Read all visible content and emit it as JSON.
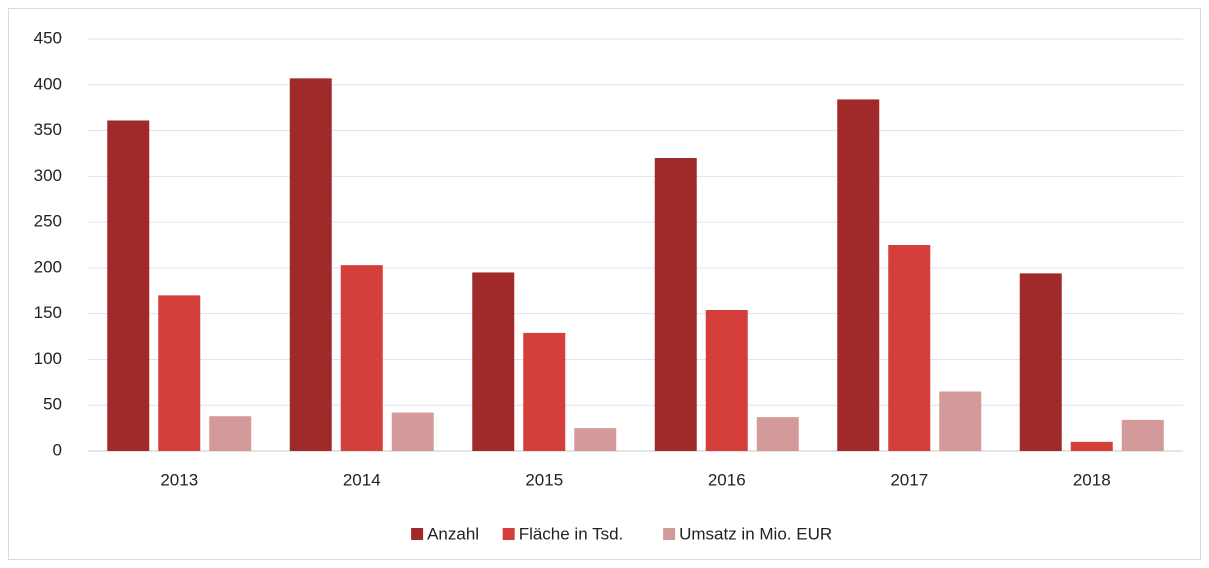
{
  "chart_data": {
    "type": "bar",
    "categories": [
      "2013",
      "2014",
      "2015",
      "2016",
      "2017",
      "2018"
    ],
    "series": [
      {
        "name": "Anzahl",
        "color": "#a0292a",
        "values": [
          361,
          407,
          195,
          320,
          384,
          194
        ]
      },
      {
        "name": "Fläche in Tsd.",
        "color": "#d43f3b",
        "values": [
          170,
          203,
          129,
          154,
          225,
          10
        ]
      },
      {
        "name": "Umsatz in Mio. EUR",
        "color": "#d49a9a",
        "values": [
          38,
          42,
          25,
          37,
          65,
          34
        ]
      }
    ],
    "ylim": [
      0,
      450
    ],
    "yticks": [
      0,
      50,
      100,
      150,
      200,
      250,
      300,
      350,
      400,
      450
    ],
    "grid": true,
    "legend": "bottom"
  }
}
